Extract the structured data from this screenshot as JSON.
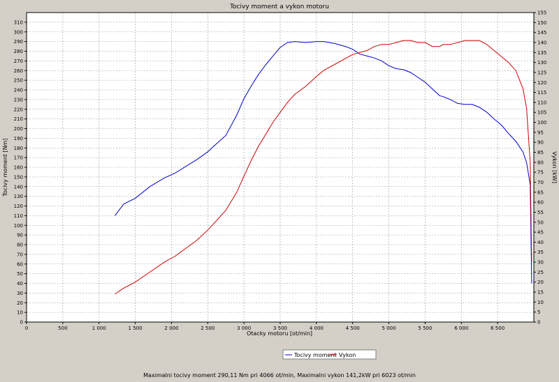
{
  "chart_data": {
    "type": "line",
    "title": "Tocivy moment a vykon motoru",
    "xlabel": "Otacky motoru [ot/min]",
    "ylabel_left": "Tocivy moment [Nm]",
    "ylabel_right": "Vykon [kW]",
    "xlim": [
      0,
      7000
    ],
    "ylim_left": [
      0,
      320
    ],
    "ylim_right": [
      0,
      155
    ],
    "x_ticks": [
      0,
      500,
      1000,
      1500,
      2000,
      2500,
      3000,
      3500,
      4000,
      4500,
      5000,
      5500,
      6000,
      6500
    ],
    "x_tick_labels": [
      "0",
      "500",
      "1 000",
      "1 500",
      "2 000",
      "2 500",
      "3 000",
      "3 500",
      "4 000",
      "4 500",
      "5 000",
      "5 500",
      "6 000",
      "6 500"
    ],
    "y_left_ticks": [
      0,
      10,
      20,
      30,
      40,
      50,
      60,
      70,
      80,
      90,
      100,
      110,
      120,
      130,
      140,
      150,
      160,
      170,
      180,
      190,
      200,
      210,
      220,
      230,
      240,
      250,
      260,
      270,
      280,
      290,
      300,
      310
    ],
    "y_right_ticks": [
      0,
      5,
      10,
      15,
      20,
      25,
      30,
      35,
      40,
      45,
      50,
      55,
      60,
      65,
      70,
      75,
      80,
      85,
      90,
      95,
      100,
      105,
      110,
      115,
      120,
      125,
      130,
      135,
      140,
      145,
      150,
      155
    ],
    "grid": true,
    "legend_position": "bottom-center",
    "series": [
      {
        "name": "Tocivy moment",
        "color": "#0000cc",
        "axis": "left",
        "x": [
          1220,
          1340,
          1500,
          1700,
          1900,
          2050,
          2200,
          2350,
          2500,
          2600,
          2750,
          2900,
          3000,
          3100,
          3200,
          3300,
          3400,
          3500,
          3600,
          3700,
          3850,
          4000,
          4100,
          4250,
          4400,
          4500,
          4600,
          4700,
          4800,
          4900,
          5000,
          5100,
          5200,
          5300,
          5400,
          5500,
          5600,
          5700,
          5750,
          5850,
          5950,
          6050,
          6150,
          6250,
          6350,
          6450,
          6550,
          6650,
          6750,
          6850,
          6900,
          6950,
          6970
        ],
        "y": [
          110,
          122,
          128,
          140,
          149,
          154,
          161,
          168,
          176,
          183,
          193,
          214,
          231,
          244,
          256,
          266,
          275,
          284,
          289,
          290,
          289,
          290,
          290,
          288,
          285,
          282,
          277,
          275,
          273,
          270,
          265,
          262,
          261,
          258,
          253,
          248,
          241,
          234,
          233,
          230,
          226,
          225,
          225,
          222,
          217,
          210,
          204,
          195,
          187,
          176,
          165,
          142,
          40
        ]
      },
      {
        "name": "Vykon",
        "color": "#cc0000",
        "axis": "right",
        "x": [
          1220,
          1340,
          1500,
          1700,
          1900,
          2050,
          2200,
          2350,
          2500,
          2600,
          2750,
          2900,
          3000,
          3100,
          3200,
          3300,
          3400,
          3500,
          3600,
          3700,
          3850,
          4000,
          4100,
          4250,
          4400,
          4500,
          4600,
          4700,
          4800,
          4900,
          5000,
          5100,
          5200,
          5300,
          5400,
          5500,
          5600,
          5700,
          5750,
          5850,
          5950,
          6050,
          6150,
          6250,
          6350,
          6450,
          6550,
          6650,
          6750,
          6850,
          6900,
          6950,
          6970
        ],
        "y": [
          14,
          17,
          20,
          25,
          30,
          33,
          37,
          41,
          46,
          50,
          56,
          65,
          73,
          81,
          88,
          94,
          100,
          105,
          110,
          114,
          118,
          123,
          126,
          129,
          132,
          134,
          135,
          136,
          138,
          139,
          139,
          140,
          141,
          141,
          140,
          140,
          138,
          138,
          139,
          139,
          140,
          141,
          141,
          141,
          139,
          136,
          133,
          130,
          126,
          117,
          107,
          80,
          30
        ]
      }
    ],
    "footer": "Maximalni tocivy moment 290,11 Nm pri 4066 ot/min,  Maximalni vykon 141,2kW pri 6023 ot/min"
  }
}
